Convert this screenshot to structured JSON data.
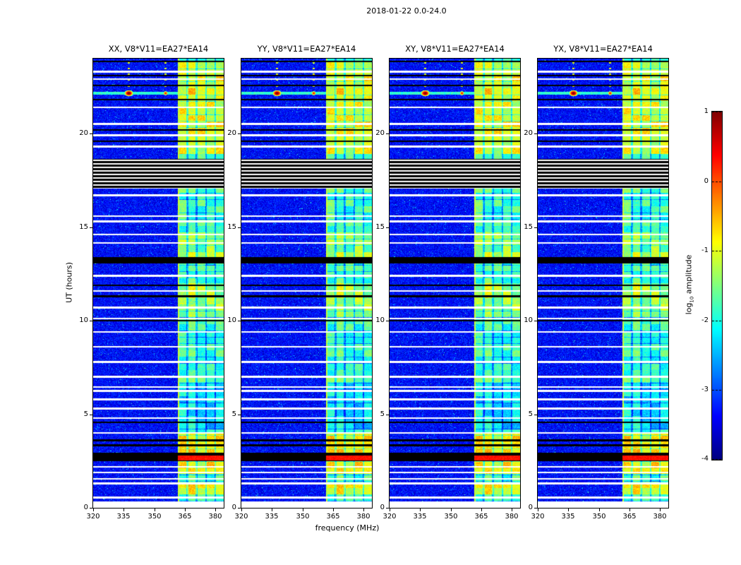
{
  "chart_data": {
    "type": "heatmap",
    "title": "2018-01-22 0.0-24.0",
    "xlabel": "frequency (MHz)",
    "ylabel": "UT (hours)",
    "x_range": [
      320,
      384
    ],
    "y_range": [
      0,
      24
    ],
    "x_ticks": [
      "320",
      "335",
      "350",
      "365",
      "380"
    ],
    "y_ticks": [
      "0",
      "5",
      "10",
      "15",
      "20"
    ],
    "panels": [
      {
        "label": "XX, V8*V11=EA27*EA14"
      },
      {
        "label": "YY, V8*V11=EA27*EA14"
      },
      {
        "label": "XY, V8*V11=EA27*EA14"
      },
      {
        "label": "YX, V8*V11=EA27*EA14"
      }
    ],
    "colorbar": {
      "label_parts": [
        "log",
        "10",
        " amplitude"
      ],
      "ticks": [
        "1",
        "0",
        "-1",
        "-2",
        "-3",
        "-4"
      ],
      "tick_values": [
        1,
        0,
        -1,
        -2,
        -3,
        -4
      ],
      "range": [
        -4,
        1
      ],
      "colormap": "jet"
    },
    "features": {
      "background_level": -3.35,
      "rfi_band": {
        "start_mhz": 361.5,
        "end_mhz": 384,
        "column_width_mhz": 4.6,
        "base_level": -1.9
      },
      "band_hot_periods": [
        [
          0.7,
          1.25,
          0.9
        ],
        [
          1.8,
          4.0,
          1.0
        ],
        [
          10.2,
          12.0,
          0.5
        ],
        [
          13.4,
          14.7,
          0.4
        ],
        [
          18.9,
          23.9,
          0.85
        ],
        [
          4.2,
          6.7,
          -0.4
        ]
      ],
      "white_gap_hours": [
        [
          23.3,
          0.05
        ],
        [
          22.9,
          0.04
        ],
        [
          21.4,
          0.04
        ],
        [
          20.5,
          0.05
        ],
        [
          19.9,
          0.05
        ],
        [
          19.3,
          0.04
        ],
        [
          16.7,
          0.05
        ],
        [
          15.6,
          0.04
        ],
        [
          15.3,
          0.04
        ],
        [
          14.6,
          0.05
        ],
        [
          14.15,
          0.04
        ],
        [
          12.4,
          0.05
        ],
        [
          11.6,
          0.04
        ],
        [
          10.7,
          0.05
        ],
        [
          10.1,
          0.04
        ],
        [
          9.4,
          0.05
        ],
        [
          8.6,
          0.05
        ],
        [
          7.8,
          0.05
        ],
        [
          7.0,
          0.04
        ],
        [
          6.45,
          0.05
        ],
        [
          6.25,
          0.07
        ],
        [
          5.8,
          0.05
        ],
        [
          5.3,
          0.05
        ],
        [
          4.8,
          0.04
        ],
        [
          4.0,
          0.05
        ],
        [
          2.2,
          0.04
        ],
        [
          1.9,
          0.04
        ],
        [
          1.55,
          0.04
        ],
        [
          1.3,
          0.04
        ],
        [
          0.55,
          0.05
        ]
      ],
      "black_line_hours": [
        [
          23.85,
          0.05
        ],
        [
          23.1,
          0.04
        ],
        [
          22.55,
          0.04
        ],
        [
          21.8,
          0.04
        ],
        [
          20.2,
          0.04
        ],
        [
          19.6,
          0.04
        ],
        [
          11.9,
          0.04
        ],
        [
          11.3,
          0.05
        ],
        [
          10.0,
          0.04
        ],
        [
          4.55,
          0.04
        ],
        [
          3.6,
          0.06
        ],
        [
          3.35,
          0.05
        ]
      ],
      "black_band_hours": [
        [
          13.05,
          13.38
        ],
        [
          2.5,
          2.95
        ]
      ],
      "striped_band_hours": [
        17.05,
        18.65
      ],
      "white_bottom_hours": [
        0,
        0.35
      ],
      "orange_streak": {
        "hours": [
          2.52,
          2.78
        ],
        "level": 0.3
      },
      "burst": {
        "hour": 22.15,
        "main_mhz": 337.5,
        "secondary_mhz": 355.5
      },
      "trail_mhz": [
        337.5,
        355.5
      ]
    }
  }
}
